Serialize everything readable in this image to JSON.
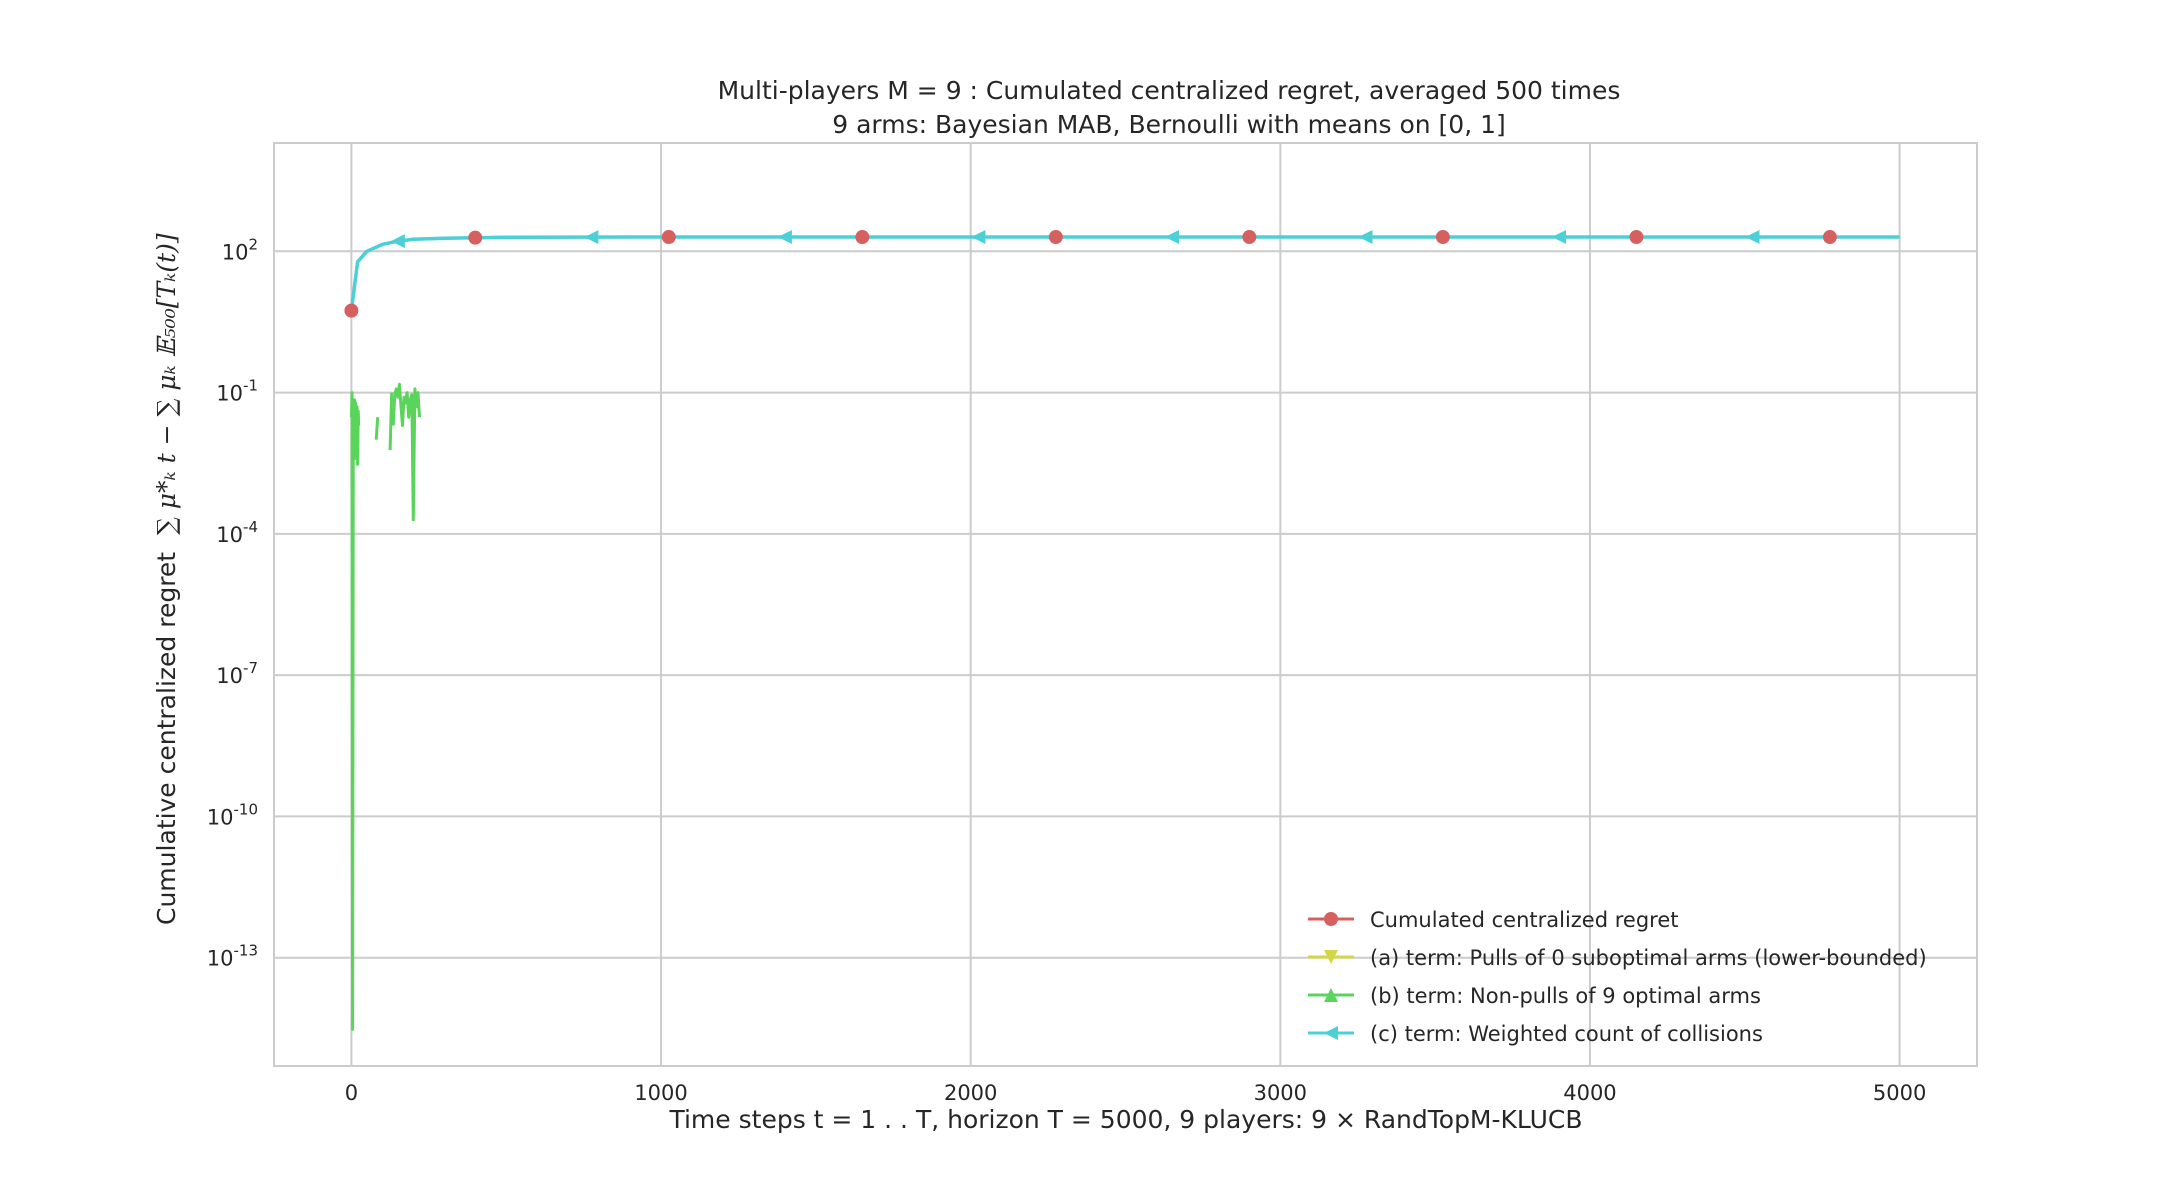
{
  "chart_data": {
    "type": "line",
    "title_line1": "Multi-players M = 9 : Cumulated centralized regret, averaged 500 times",
    "title_line2": "9 arms: Bayesian MAB, Bernoulli with means on [0, 1]",
    "xlabel": "Time steps t = 1 . . T, horizon T = 5000, 9 players: 9 × RandTopM-KLUCB",
    "ylabel_text": "Cumulative centralized regret",
    "ylabel_formula": "∑ μ*ₖ t − ∑ μₖ 𝔼₅₀₀[Tₖ(t)]",
    "xlim": [
      -250,
      5250
    ],
    "ylim_log10": [
      -15.3,
      4.3
    ],
    "yscale": "log",
    "grid": true,
    "legend_position": "lower-right",
    "x_ticks": [
      0,
      1000,
      2000,
      3000,
      4000,
      5000
    ],
    "x_tick_labels": [
      "0",
      "1000",
      "2000",
      "3000",
      "4000",
      "5000"
    ],
    "y_ticks_log10": [
      2,
      -1,
      -4,
      -7,
      -10,
      -13
    ],
    "y_tick_labels": [
      {
        "base": "10",
        "exp": "2"
      },
      {
        "base": "10",
        "exp": "-1"
      },
      {
        "base": "10",
        "exp": "-4"
      },
      {
        "base": "10",
        "exp": "-7"
      },
      {
        "base": "10",
        "exp": "-10"
      },
      {
        "base": "10",
        "exp": "-13"
      }
    ],
    "series": [
      {
        "name": "Cumulated centralized regret",
        "color": "#d65f5f",
        "marker": "circle",
        "x": [
          0,
          20,
          50,
          100,
          150,
          200,
          300,
          400,
          500,
          700,
          1000,
          1500,
          2000,
          3000,
          4000,
          5000
        ],
        "y": [
          5.5,
          60,
          100,
          140,
          165,
          180,
          190,
          195,
          198,
          200,
          201,
          201,
          201,
          201,
          201,
          201
        ],
        "marker_x": [
          0,
          400,
          1025,
          1650,
          2275,
          2900,
          3525,
          4150,
          4775
        ]
      },
      {
        "name": "(a) term: Pulls of 0 suboptimal arms (lower-bounded)",
        "color": "#d5d548",
        "marker": "triangle-down",
        "x": [],
        "y": []
      },
      {
        "name": "(b) term: Non-pulls of 9 optimal arms",
        "color": "#5bd45b",
        "marker": "triangle-up",
        "x": [
          0,
          2,
          4,
          6,
          8,
          10,
          12,
          14,
          16,
          18,
          20,
          22,
          24
        ],
        "y": [
          0.03,
          0.1,
          3e-15,
          0.05,
          0.02,
          0.07,
          0.004,
          0.06,
          0.01,
          0.05,
          0.003,
          0.04,
          0.02
        ],
        "x2": [
          80,
          85,
          125,
          130,
          135,
          140,
          145,
          150,
          155,
          160,
          165,
          170,
          175,
          180,
          185,
          190,
          195,
          200,
          205,
          210,
          215,
          220
        ],
        "y2": [
          0.01,
          0.03,
          0.006,
          0.1,
          0.02,
          0.09,
          0.12,
          0.08,
          0.15,
          0.05,
          0.02,
          0.08,
          0.06,
          0.1,
          0.03,
          0.07,
          0.09,
          0.0002,
          0.12,
          0.05,
          0.1,
          0.03
        ]
      },
      {
        "name": "(c) term: Weighted count of collisions",
        "color": "#4cd0d8",
        "marker": "triangle-left",
        "x": [
          0,
          20,
          50,
          100,
          150,
          200,
          300,
          400,
          500,
          700,
          1000,
          1500,
          2000,
          3000,
          4000,
          5000
        ],
        "y": [
          5.5,
          60,
          100,
          140,
          165,
          180,
          190,
          195,
          198,
          200,
          201,
          201,
          201,
          201,
          201,
          201
        ],
        "marker_x": [
          150,
          775,
          1400,
          2025,
          2650,
          3275,
          3900,
          4525
        ]
      }
    ]
  }
}
